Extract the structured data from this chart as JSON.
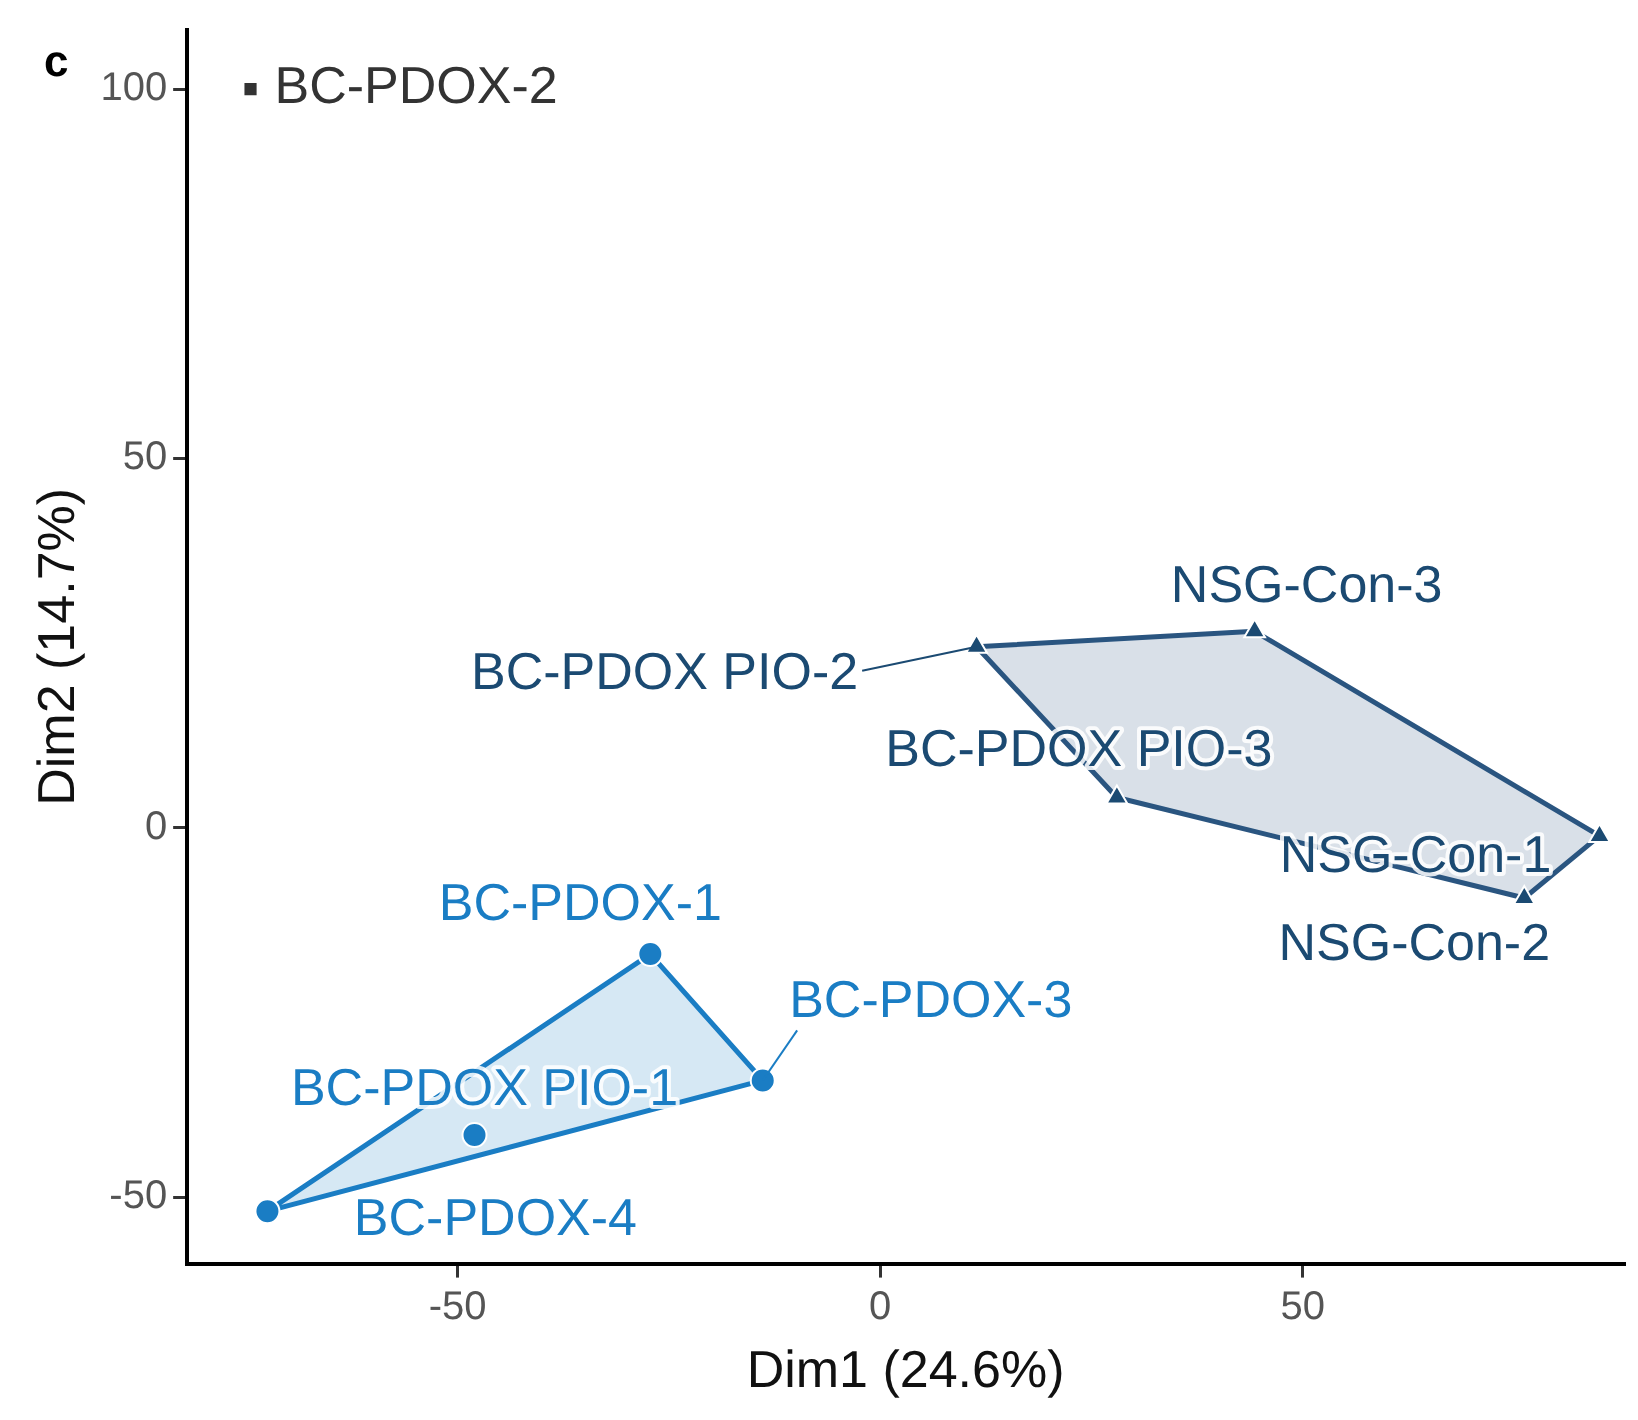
{
  "chart_data": {
    "type": "scatter",
    "xlabel": "Dim1 (24.6%)",
    "ylabel": "Dim2 (14.7%)",
    "xlim": [
      -82,
      88
    ],
    "ylim": [
      -59,
      108
    ],
    "xticks": [
      -50,
      0,
      50
    ],
    "yticks": [
      -50,
      0,
      50,
      100
    ],
    "legend": false,
    "series": [
      {
        "type": "area",
        "color": "#1a7dc4",
        "x": [
          -72.5,
          -27.2,
          -13.9,
          -72.5
        ],
        "values": [
          -51.9,
          -17.1,
          -34.2,
          -51.9
        ]
      },
      {
        "type": "scatter",
        "marker": "circle",
        "color": "#1a7dc4",
        "x": [
          -27.2,
          -13.9,
          -48,
          -72.5
        ],
        "values": [
          -17.1,
          -34.2,
          -41.6,
          -51.9
        ]
      },
      {
        "type": "area",
        "color": "#2a5580",
        "x": [
          11.4,
          44.3,
          85.1,
          76.2,
          28,
          11.4
        ],
        "values": [
          24.5,
          26.6,
          -1.1,
          -9.5,
          4.1,
          24.5
        ]
      },
      {
        "type": "scatter",
        "marker": "triangle",
        "color": "#1b4a72",
        "x": [
          11.4,
          44.3,
          28,
          85.1,
          76.2
        ],
        "values": [
          24.5,
          26.6,
          4.1,
          -1.1,
          -9.5
        ]
      },
      {
        "type": "scatter",
        "marker": "square",
        "color": "#333333",
        "x": [
          -74.5
        ],
        "values": [
          100
        ]
      }
    ],
    "annotations": [
      "c",
      {
        "text": "BC-PDOX-1",
        "x": -27.2,
        "y": -17.1
      },
      {
        "text": "BC-PDOX-3",
        "x": -13.9,
        "y": -34.2
      },
      {
        "text": "BC-PDOX PIO-1",
        "x": -48,
        "y": -41.6
      },
      {
        "text": "BC-PDOX-4",
        "x": -72.5,
        "y": -51.9
      },
      {
        "text": "BC-PDOX PIO-2",
        "x": 11.4,
        "y": 24.5
      },
      {
        "text": "NSG-Con-3",
        "x": 44.3,
        "y": 26.6
      },
      {
        "text": "BC-PDOX PIO-3",
        "x": 28,
        "y": 4.1
      },
      {
        "text": "NSG-Con-1",
        "x": 85.1,
        "y": -1.1
      },
      {
        "text": "NSG-Con-2",
        "x": 76.2,
        "y": -9.5
      },
      {
        "text": "BC-PDOX-2",
        "x": -74.5,
        "y": 100
      }
    ]
  }
}
